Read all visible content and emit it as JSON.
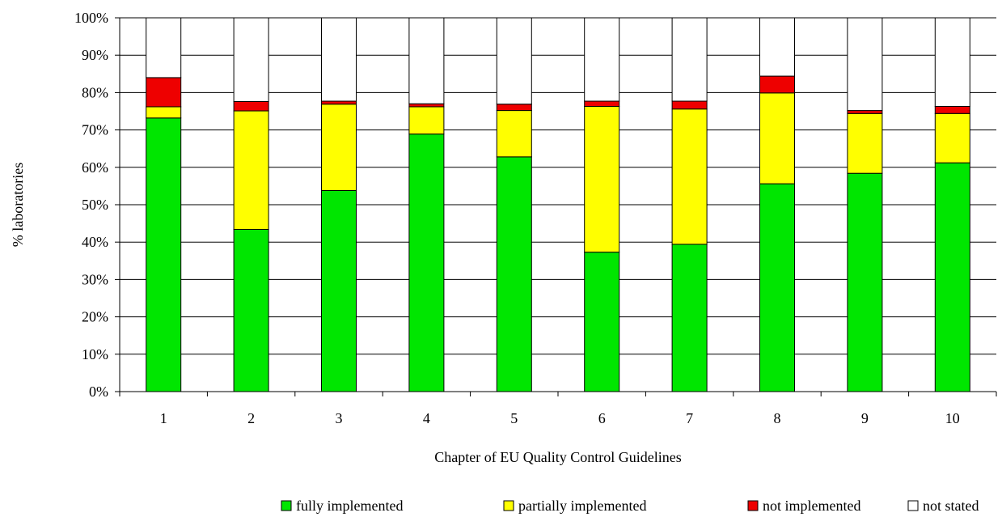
{
  "chart_data": {
    "type": "bar",
    "stacked": true,
    "percent": true,
    "title": "",
    "xlabel": "Chapter of EU Quality Control Guidelines",
    "ylabel": "% laboratories",
    "ylim": [
      0,
      100
    ],
    "y_ticks": [
      "0%",
      "10%",
      "20%",
      "30%",
      "40%",
      "50%",
      "60%",
      "70%",
      "80%",
      "90%",
      "100%"
    ],
    "grid": true,
    "legend_position": "bottom",
    "categories": [
      "1",
      "2",
      "3",
      "4",
      "5",
      "6",
      "7",
      "8",
      "9",
      "10"
    ],
    "series": [
      {
        "name": "fully implemented",
        "color": "#00e600",
        "values": [
          73.2,
          43.4,
          53.8,
          68.9,
          62.8,
          37.3,
          39.4,
          55.6,
          58.4,
          61.2
        ]
      },
      {
        "name": "partially implemented",
        "color": "#ffff00",
        "values": [
          3.0,
          31.7,
          23.1,
          7.3,
          12.4,
          39.0,
          36.2,
          24.3,
          16.0,
          13.2
        ]
      },
      {
        "name": "not implemented",
        "color": "#ee0000",
        "values": [
          7.8,
          2.5,
          0.8,
          0.8,
          1.7,
          1.4,
          2.1,
          4.5,
          0.8,
          1.9
        ]
      },
      {
        "name": "not stated",
        "color": "#ffffff",
        "values": [
          16.0,
          22.4,
          22.3,
          23.0,
          23.1,
          22.3,
          22.3,
          15.6,
          24.8,
          23.7
        ]
      }
    ]
  }
}
